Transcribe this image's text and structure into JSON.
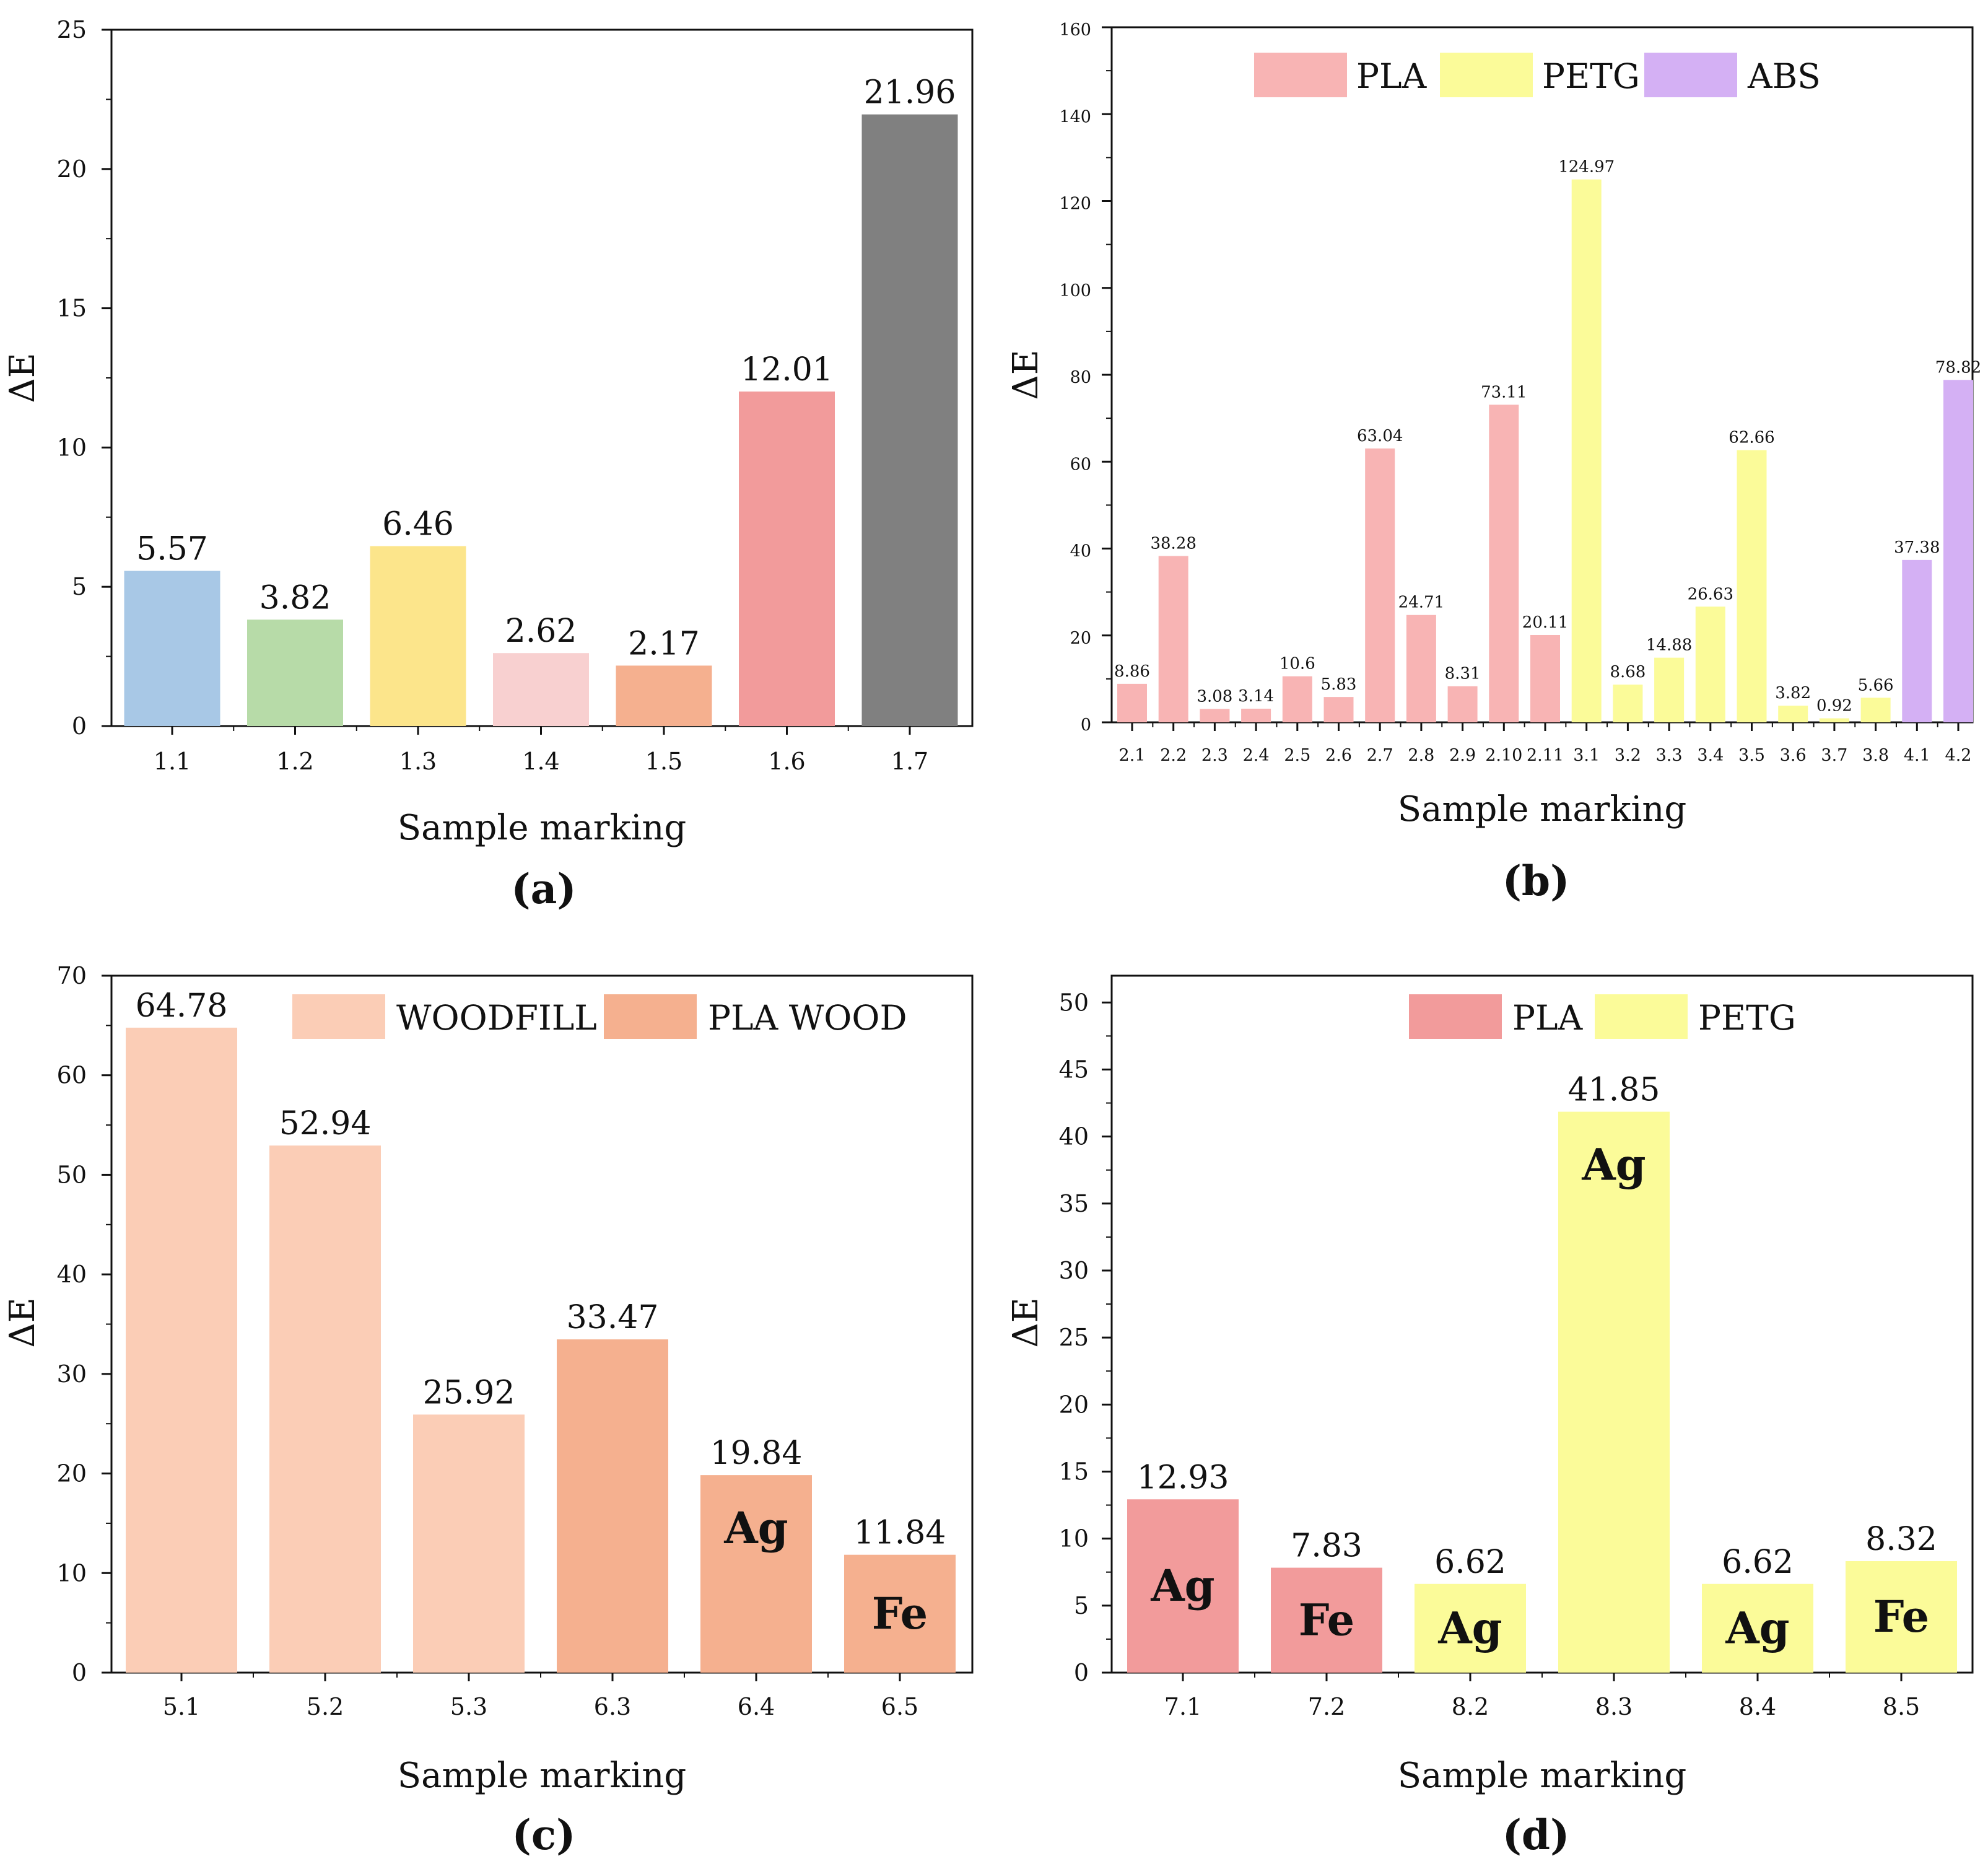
{
  "colors": {
    "axis": "#111111",
    "pla_pink": "#F8B4B4",
    "petg_yellow": "#FBFB99",
    "abs_purple": "#D4B0F4",
    "woodfill": "#FBCDB6",
    "pla_wood": "#F5B08F",
    "pla_red": "#F29B9B"
  },
  "chart_data": [
    {
      "id": "a",
      "type": "bar",
      "panel_label": "(a)",
      "xlabel": "Sample marking",
      "ylabel": "ΔE",
      "ylim": [
        0,
        25
      ],
      "yticks": [
        0,
        5,
        10,
        15,
        20,
        25
      ],
      "yticks_text": [
        "0",
        "5",
        "10",
        "15",
        "20",
        "25"
      ],
      "legend": [],
      "bars": [
        {
          "category": "1.1",
          "value": 5.57,
          "label": "5.57",
          "color": "#A8C8E6",
          "group": ""
        },
        {
          "category": "1.2",
          "value": 3.82,
          "label": "3.82",
          "color": "#B7DBA8",
          "group": ""
        },
        {
          "category": "1.3",
          "value": 6.46,
          "label": "6.46",
          "color": "#FCE58B",
          "group": ""
        },
        {
          "category": "1.4",
          "value": 2.62,
          "label": "2.62",
          "color": "#F8D0D0",
          "group": ""
        },
        {
          "category": "1.5",
          "value": 2.17,
          "label": "2.17",
          "color": "#F5B08F",
          "group": ""
        },
        {
          "category": "1.6",
          "value": 12.01,
          "label": "12.01",
          "color": "#F29B9B",
          "group": ""
        },
        {
          "category": "1.7",
          "value": 21.96,
          "label": "21.96",
          "color": "#808080",
          "group": ""
        }
      ]
    },
    {
      "id": "b",
      "type": "bar",
      "panel_label": "(b)",
      "xlabel": "Sample marking",
      "ylabel": "ΔE",
      "ylim": [
        0,
        160
      ],
      "yticks": [
        0,
        20,
        40,
        60,
        80,
        100,
        120,
        140,
        160
      ],
      "yticks_text": [
        "0",
        "20",
        "40",
        "60",
        "80",
        "100",
        "120",
        "140",
        "160"
      ],
      "legend": [
        {
          "name": "PLA",
          "color": "#F8B4B4"
        },
        {
          "name": "PETG",
          "color": "#FBFB99"
        },
        {
          "name": "ABS",
          "color": "#D4B0F4"
        }
      ],
      "bars": [
        {
          "category": "2.1",
          "value": 8.86,
          "label": "8.86",
          "group": "PLA"
        },
        {
          "category": "2.2",
          "value": 38.28,
          "label": "38.28",
          "group": "PLA"
        },
        {
          "category": "2.3",
          "value": 3.08,
          "label": "3.08",
          "group": "PLA"
        },
        {
          "category": "2.4",
          "value": 3.14,
          "label": "3.14",
          "group": "PLA"
        },
        {
          "category": "2.5",
          "value": 10.6,
          "label": "10.6",
          "group": "PLA"
        },
        {
          "category": "2.6",
          "value": 5.83,
          "label": "5.83",
          "group": "PLA"
        },
        {
          "category": "2.7",
          "value": 63.04,
          "label": "63.04",
          "group": "PLA"
        },
        {
          "category": "2.8",
          "value": 24.71,
          "label": "24.71",
          "group": "PLA"
        },
        {
          "category": "2.9",
          "value": 8.31,
          "label": "8.31",
          "group": "PLA"
        },
        {
          "category": "2.10",
          "value": 73.11,
          "label": "73.11",
          "group": "PLA"
        },
        {
          "category": "2.11",
          "value": 20.11,
          "label": "20.11",
          "group": "PLA"
        },
        {
          "category": "3.1",
          "value": 124.97,
          "label": "124.97",
          "group": "PETG"
        },
        {
          "category": "3.2",
          "value": 8.68,
          "label": "8.68",
          "group": "PETG"
        },
        {
          "category": "3.3",
          "value": 14.88,
          "label": "14.88",
          "group": "PETG"
        },
        {
          "category": "3.4",
          "value": 26.63,
          "label": "26.63",
          "group": "PETG"
        },
        {
          "category": "3.5",
          "value": 62.66,
          "label": "62.66",
          "group": "PETG"
        },
        {
          "category": "3.6",
          "value": 3.82,
          "label": "3.82",
          "group": "PETG"
        },
        {
          "category": "3.7",
          "value": 0.92,
          "label": "0.92",
          "group": "PETG"
        },
        {
          "category": "3.8",
          "value": 5.66,
          "label": "5.66",
          "group": "PETG"
        },
        {
          "category": "4.1",
          "value": 37.38,
          "label": "37.38",
          "group": "ABS"
        },
        {
          "category": "4.2",
          "value": 78.82,
          "label": "78.82",
          "group": "ABS"
        }
      ]
    },
    {
      "id": "c",
      "type": "bar",
      "panel_label": "(c)",
      "xlabel": "Sample marking",
      "ylabel": "ΔE",
      "ylim": [
        0,
        70
      ],
      "yticks": [
        0,
        10,
        20,
        30,
        40,
        50,
        60,
        70
      ],
      "yticks_text": [
        "0",
        "10",
        "20",
        "30",
        "40",
        "50",
        "60",
        "70"
      ],
      "legend": [
        {
          "name": "WOODFILL",
          "color": "#FBCDB6"
        },
        {
          "name": "PLA WOOD",
          "color": "#F5B08F"
        }
      ],
      "bars": [
        {
          "category": "5.1",
          "value": 64.78,
          "label": "64.78",
          "group": "WOODFILL",
          "inner": ""
        },
        {
          "category": "5.2",
          "value": 52.94,
          "label": "52.94",
          "group": "WOODFILL",
          "inner": ""
        },
        {
          "category": "5.3",
          "value": 25.92,
          "label": "25.92",
          "group": "WOODFILL",
          "inner": ""
        },
        {
          "category": "6.3",
          "value": 33.47,
          "label": "33.47",
          "group": "PLA WOOD",
          "inner": ""
        },
        {
          "category": "6.4",
          "value": 19.84,
          "label": "19.84",
          "group": "PLA WOOD",
          "inner": "Ag"
        },
        {
          "category": "6.5",
          "value": 11.84,
          "label": "11.84",
          "group": "PLA WOOD",
          "inner": "Fe"
        }
      ]
    },
    {
      "id": "d",
      "type": "bar",
      "panel_label": "(d)",
      "xlabel": "Sample marking",
      "ylabel": "ΔE",
      "ylim": [
        0,
        52
      ],
      "yticks": [
        0,
        5,
        10,
        15,
        20,
        25,
        30,
        35,
        40,
        45,
        50
      ],
      "yticks_text": [
        "0",
        "5",
        "10",
        "15",
        "20",
        "25",
        "30",
        "35",
        "40",
        "45",
        "50"
      ],
      "legend": [
        {
          "name": "PLA",
          "color": "#F29B9B"
        },
        {
          "name": "PETG",
          "color": "#FBFB99"
        }
      ],
      "bars": [
        {
          "category": "7.1",
          "value": 12.93,
          "label": "12.93",
          "group": "PLA",
          "inner": "Ag"
        },
        {
          "category": "7.2",
          "value": 7.83,
          "label": "7.83",
          "group": "PLA",
          "inner": "Fe"
        },
        {
          "category": "8.2",
          "value": 6.62,
          "label": "6.62",
          "group": "PETG",
          "inner": "Ag"
        },
        {
          "category": "8.3",
          "value": 41.85,
          "label": "41.85",
          "group": "PETG",
          "inner": "Ag"
        },
        {
          "category": "8.4",
          "value": 6.62,
          "label": "6.62",
          "group": "PETG",
          "inner": "Ag"
        },
        {
          "category": "8.5",
          "value": 8.32,
          "label": "8.32",
          "group": "PETG",
          "inner": "Fe"
        }
      ]
    }
  ]
}
